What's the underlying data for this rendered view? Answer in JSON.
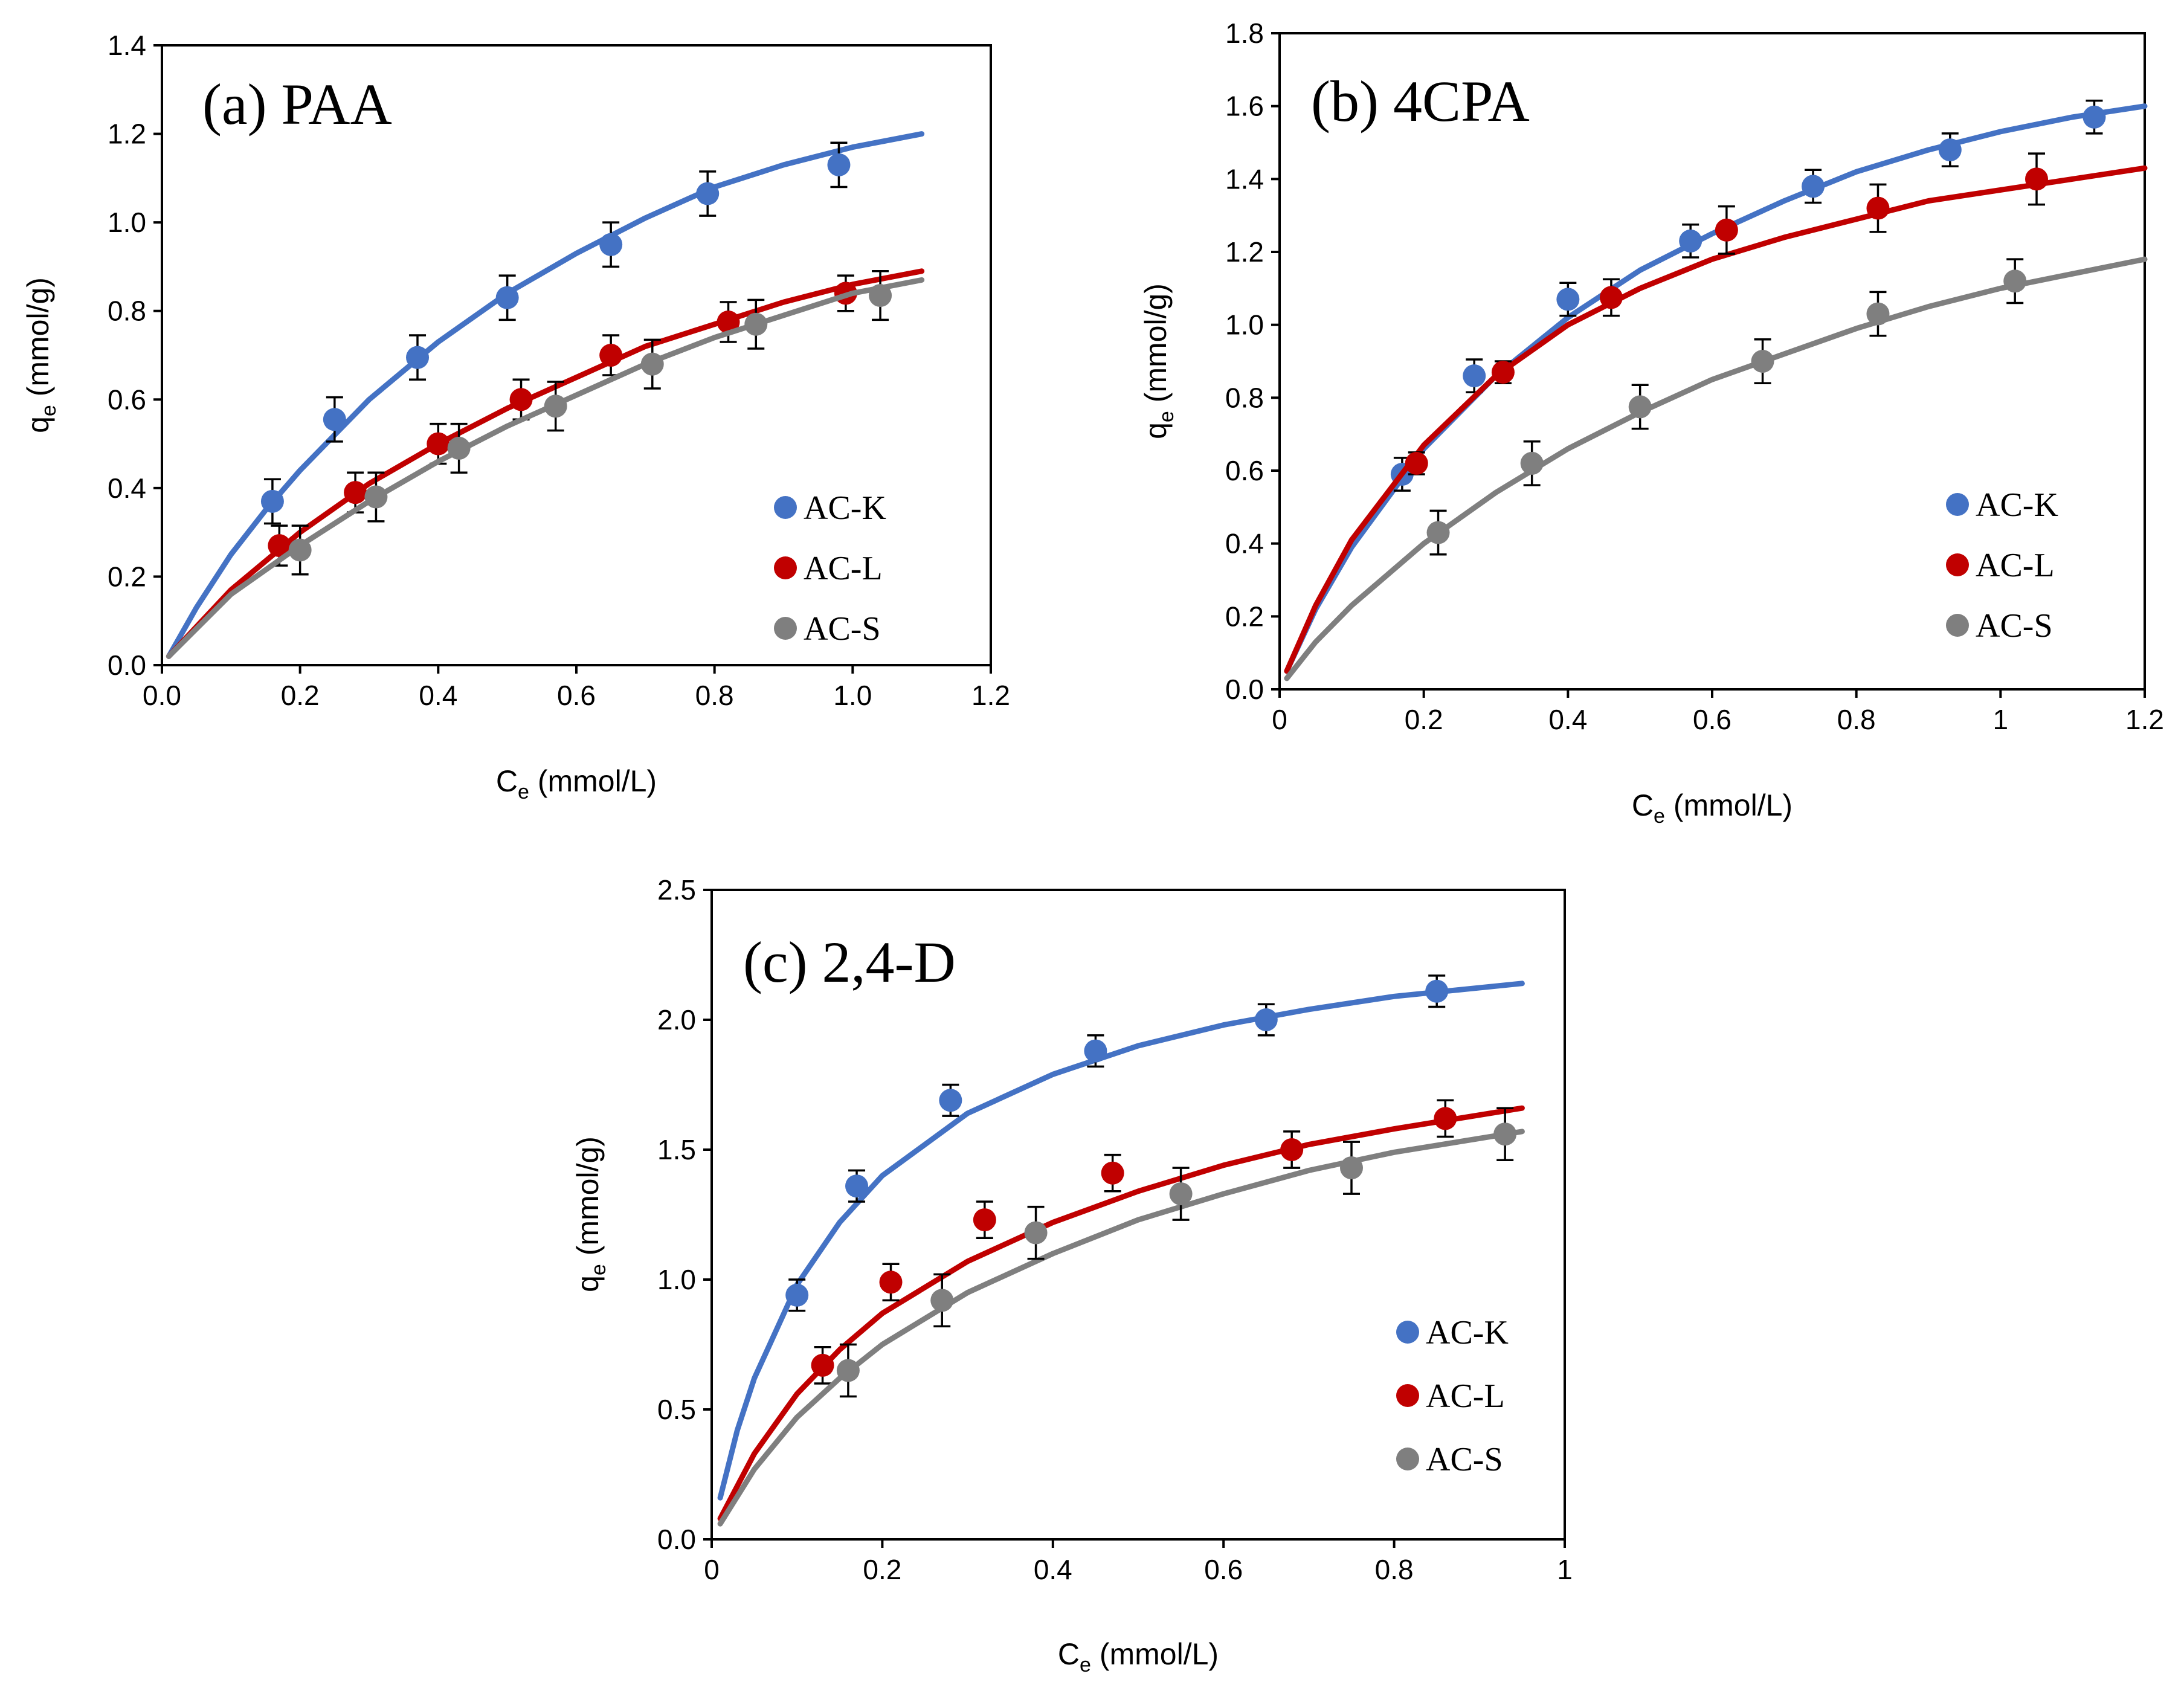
{
  "colors": {
    "AC-K": "#4472C4",
    "AC-L": "#C00000",
    "AC-S": "#7F7F7F"
  },
  "chart_data": [
    {
      "id": "a",
      "type": "scatter",
      "title": "(a) PAA",
      "xlabel_main": "C",
      "xlabel_sub": "e",
      "xlabel_rest": " (mmol/L)",
      "ylabel_main": "q",
      "ylabel_sub": "e",
      "ylabel_rest": " (mmol/g)",
      "xlim": [
        0,
        1.2
      ],
      "ylim": [
        0,
        1.4
      ],
      "xticks": [
        0,
        0.2,
        0.4,
        0.6,
        0.8,
        1.0,
        1.2
      ],
      "xtick_labels": [
        "0.0",
        "0.2",
        "0.4",
        "0.6",
        "0.8",
        "1.0",
        "1.2"
      ],
      "yticks": [
        0,
        0.2,
        0.4,
        0.6,
        0.8,
        1.0,
        1.2,
        1.4
      ],
      "ytick_labels": [
        "0.0",
        "0.2",
        "0.4",
        "0.6",
        "0.8",
        "1.0",
        "1.2",
        "1.4"
      ],
      "legend": [
        "AC-K",
        "AC-L",
        "AC-S"
      ],
      "legend_position": "bottom-right",
      "series": [
        {
          "name": "AC-K",
          "x": [
            0.16,
            0.25,
            0.37,
            0.5,
            0.65,
            0.79,
            0.98
          ],
          "y": [
            0.37,
            0.555,
            0.695,
            0.83,
            0.95,
            1.065,
            1.13
          ],
          "err": [
            0.05,
            0.05,
            0.05,
            0.05,
            0.05,
            0.05,
            0.05
          ],
          "fit_x": [
            0.01,
            0.05,
            0.1,
            0.15,
            0.2,
            0.3,
            0.4,
            0.5,
            0.6,
            0.7,
            0.8,
            0.9,
            1.0,
            1.1
          ],
          "fit_y": [
            0.02,
            0.13,
            0.25,
            0.35,
            0.44,
            0.6,
            0.73,
            0.84,
            0.93,
            1.01,
            1.08,
            1.13,
            1.17,
            1.2
          ]
        },
        {
          "name": "AC-L",
          "x": [
            0.17,
            0.28,
            0.4,
            0.52,
            0.65,
            0.82,
            0.99
          ],
          "y": [
            0.27,
            0.39,
            0.5,
            0.6,
            0.7,
            0.775,
            0.84
          ],
          "err": [
            0.045,
            0.045,
            0.045,
            0.045,
            0.045,
            0.045,
            0.04
          ],
          "fit_x": [
            0.01,
            0.1,
            0.2,
            0.3,
            0.4,
            0.5,
            0.6,
            0.7,
            0.8,
            0.9,
            1.0,
            1.1
          ],
          "fit_y": [
            0.02,
            0.17,
            0.3,
            0.41,
            0.5,
            0.58,
            0.65,
            0.72,
            0.77,
            0.82,
            0.86,
            0.89
          ]
        },
        {
          "name": "AC-S",
          "x": [
            0.2,
            0.31,
            0.43,
            0.57,
            0.71,
            0.86,
            1.04
          ],
          "y": [
            0.26,
            0.38,
            0.49,
            0.585,
            0.68,
            0.77,
            0.835
          ],
          "err": [
            0.055,
            0.055,
            0.055,
            0.055,
            0.055,
            0.055,
            0.055
          ],
          "fit_x": [
            0.01,
            0.1,
            0.2,
            0.3,
            0.4,
            0.5,
            0.6,
            0.7,
            0.8,
            0.9,
            1.0,
            1.1
          ],
          "fit_y": [
            0.02,
            0.16,
            0.27,
            0.37,
            0.46,
            0.54,
            0.61,
            0.68,
            0.74,
            0.79,
            0.84,
            0.87
          ]
        }
      ]
    },
    {
      "id": "b",
      "type": "scatter",
      "title": "(b) 4CPA",
      "xlabel_main": "C",
      "xlabel_sub": "e",
      "xlabel_rest": " (mmol/L)",
      "ylabel_main": "q",
      "ylabel_sub": "e",
      "ylabel_rest": " (mmol/g)",
      "xlim": [
        0,
        1.2
      ],
      "ylim": [
        0,
        1.8
      ],
      "xticks": [
        0,
        0.2,
        0.4,
        0.6,
        0.8,
        1.0,
        1.2
      ],
      "xtick_labels": [
        "0",
        "0.2",
        "0.4",
        "0.6",
        "0.8",
        "1",
        "1.2"
      ],
      "yticks": [
        0,
        0.2,
        0.4,
        0.6,
        0.8,
        1.0,
        1.2,
        1.4,
        1.6,
        1.8
      ],
      "ytick_labels": [
        "0.0",
        "0.2",
        "0.4",
        "0.6",
        "0.8",
        "1.0",
        "1.2",
        "1.4",
        "1.6",
        "1.8"
      ],
      "legend": [
        "AC-K",
        "AC-L",
        "AC-S"
      ],
      "legend_position": "bottom-right",
      "series": [
        {
          "name": "AC-K",
          "x": [
            0.17,
            0.27,
            0.4,
            0.57,
            0.74,
            0.93,
            1.13
          ],
          "y": [
            0.59,
            0.86,
            1.07,
            1.23,
            1.38,
            1.48,
            1.57
          ],
          "err": [
            0.045,
            0.045,
            0.045,
            0.045,
            0.045,
            0.045,
            0.045
          ],
          "fit_x": [
            0.01,
            0.05,
            0.1,
            0.2,
            0.3,
            0.4,
            0.5,
            0.6,
            0.7,
            0.8,
            0.9,
            1.0,
            1.1,
            1.2
          ],
          "fit_y": [
            0.05,
            0.22,
            0.39,
            0.66,
            0.86,
            1.02,
            1.15,
            1.25,
            1.34,
            1.42,
            1.48,
            1.53,
            1.57,
            1.6
          ]
        },
        {
          "name": "AC-L",
          "x": [
            0.19,
            0.31,
            0.46,
            0.62,
            0.83,
            1.05
          ],
          "y": [
            0.62,
            0.87,
            1.075,
            1.26,
            1.32,
            1.4
          ],
          "err": [
            0.03,
            0.03,
            0.05,
            0.065,
            0.065,
            0.07
          ],
          "fit_x": [
            0.01,
            0.05,
            0.1,
            0.2,
            0.3,
            0.4,
            0.5,
            0.6,
            0.7,
            0.8,
            0.9,
            1.0,
            1.1,
            1.2
          ],
          "fit_y": [
            0.05,
            0.23,
            0.41,
            0.67,
            0.86,
            1.0,
            1.1,
            1.18,
            1.24,
            1.29,
            1.34,
            1.37,
            1.4,
            1.43
          ]
        },
        {
          "name": "AC-S",
          "x": [
            0.22,
            0.35,
            0.5,
            0.67,
            0.83,
            1.02
          ],
          "y": [
            0.43,
            0.62,
            0.775,
            0.9,
            1.03,
            1.12
          ],
          "err": [
            0.06,
            0.06,
            0.06,
            0.06,
            0.06,
            0.06
          ],
          "fit_x": [
            0.01,
            0.05,
            0.1,
            0.2,
            0.3,
            0.4,
            0.5,
            0.6,
            0.7,
            0.8,
            0.9,
            1.0,
            1.1,
            1.2
          ],
          "fit_y": [
            0.03,
            0.13,
            0.23,
            0.4,
            0.54,
            0.66,
            0.76,
            0.85,
            0.92,
            0.99,
            1.05,
            1.1,
            1.14,
            1.18
          ]
        }
      ]
    },
    {
      "id": "c",
      "type": "scatter",
      "title": "(c) 2,4-D",
      "xlabel_main": "C",
      "xlabel_sub": "e",
      "xlabel_rest": " (mmol/L)",
      "ylabel_main": "q",
      "ylabel_sub": "e",
      "ylabel_rest": " (mmol/g)",
      "xlim": [
        0,
        1.0
      ],
      "ylim": [
        0,
        2.5
      ],
      "xticks": [
        0,
        0.2,
        0.4,
        0.6,
        0.8,
        1.0
      ],
      "xtick_labels": [
        "0",
        "0.2",
        "0.4",
        "0.6",
        "0.8",
        "1"
      ],
      "yticks": [
        0,
        0.5,
        1.0,
        1.5,
        2.0,
        2.5
      ],
      "ytick_labels": [
        "0.0",
        "0.5",
        "1.0",
        "1.5",
        "2.0",
        "2.5"
      ],
      "legend": [
        "AC-K",
        "AC-L",
        "AC-S"
      ],
      "legend_position": "bottom-right",
      "series": [
        {
          "name": "AC-K",
          "x": [
            0.1,
            0.17,
            0.28,
            0.45,
            0.65,
            0.85
          ],
          "y": [
            0.94,
            1.36,
            1.69,
            1.88,
            2.0,
            2.11
          ],
          "err": [
            0.06,
            0.06,
            0.06,
            0.06,
            0.06,
            0.06
          ],
          "fit_x": [
            0.01,
            0.03,
            0.05,
            0.1,
            0.15,
            0.2,
            0.3,
            0.4,
            0.5,
            0.6,
            0.7,
            0.8,
            0.95
          ],
          "fit_y": [
            0.16,
            0.42,
            0.62,
            0.98,
            1.22,
            1.4,
            1.64,
            1.79,
            1.9,
            1.98,
            2.04,
            2.09,
            2.14
          ]
        },
        {
          "name": "AC-L",
          "x": [
            0.13,
            0.21,
            0.32,
            0.47,
            0.68,
            0.86
          ],
          "y": [
            0.67,
            0.99,
            1.23,
            1.41,
            1.5,
            1.62
          ],
          "err": [
            0.07,
            0.07,
            0.07,
            0.07,
            0.07,
            0.07
          ],
          "fit_x": [
            0.01,
            0.05,
            0.1,
            0.15,
            0.2,
            0.3,
            0.4,
            0.5,
            0.6,
            0.7,
            0.8,
            0.95
          ],
          "fit_y": [
            0.08,
            0.33,
            0.56,
            0.73,
            0.87,
            1.07,
            1.22,
            1.34,
            1.44,
            1.52,
            1.58,
            1.66
          ]
        },
        {
          "name": "AC-S",
          "x": [
            0.16,
            0.27,
            0.38,
            0.55,
            0.75,
            0.93
          ],
          "y": [
            0.65,
            0.92,
            1.18,
            1.33,
            1.43,
            1.56
          ],
          "err": [
            0.1,
            0.1,
            0.1,
            0.1,
            0.1,
            0.1
          ],
          "fit_x": [
            0.01,
            0.05,
            0.1,
            0.15,
            0.2,
            0.3,
            0.4,
            0.5,
            0.6,
            0.7,
            0.8,
            0.95
          ],
          "fit_y": [
            0.06,
            0.27,
            0.47,
            0.62,
            0.75,
            0.95,
            1.1,
            1.23,
            1.33,
            1.42,
            1.49,
            1.57
          ]
        }
      ]
    }
  ]
}
